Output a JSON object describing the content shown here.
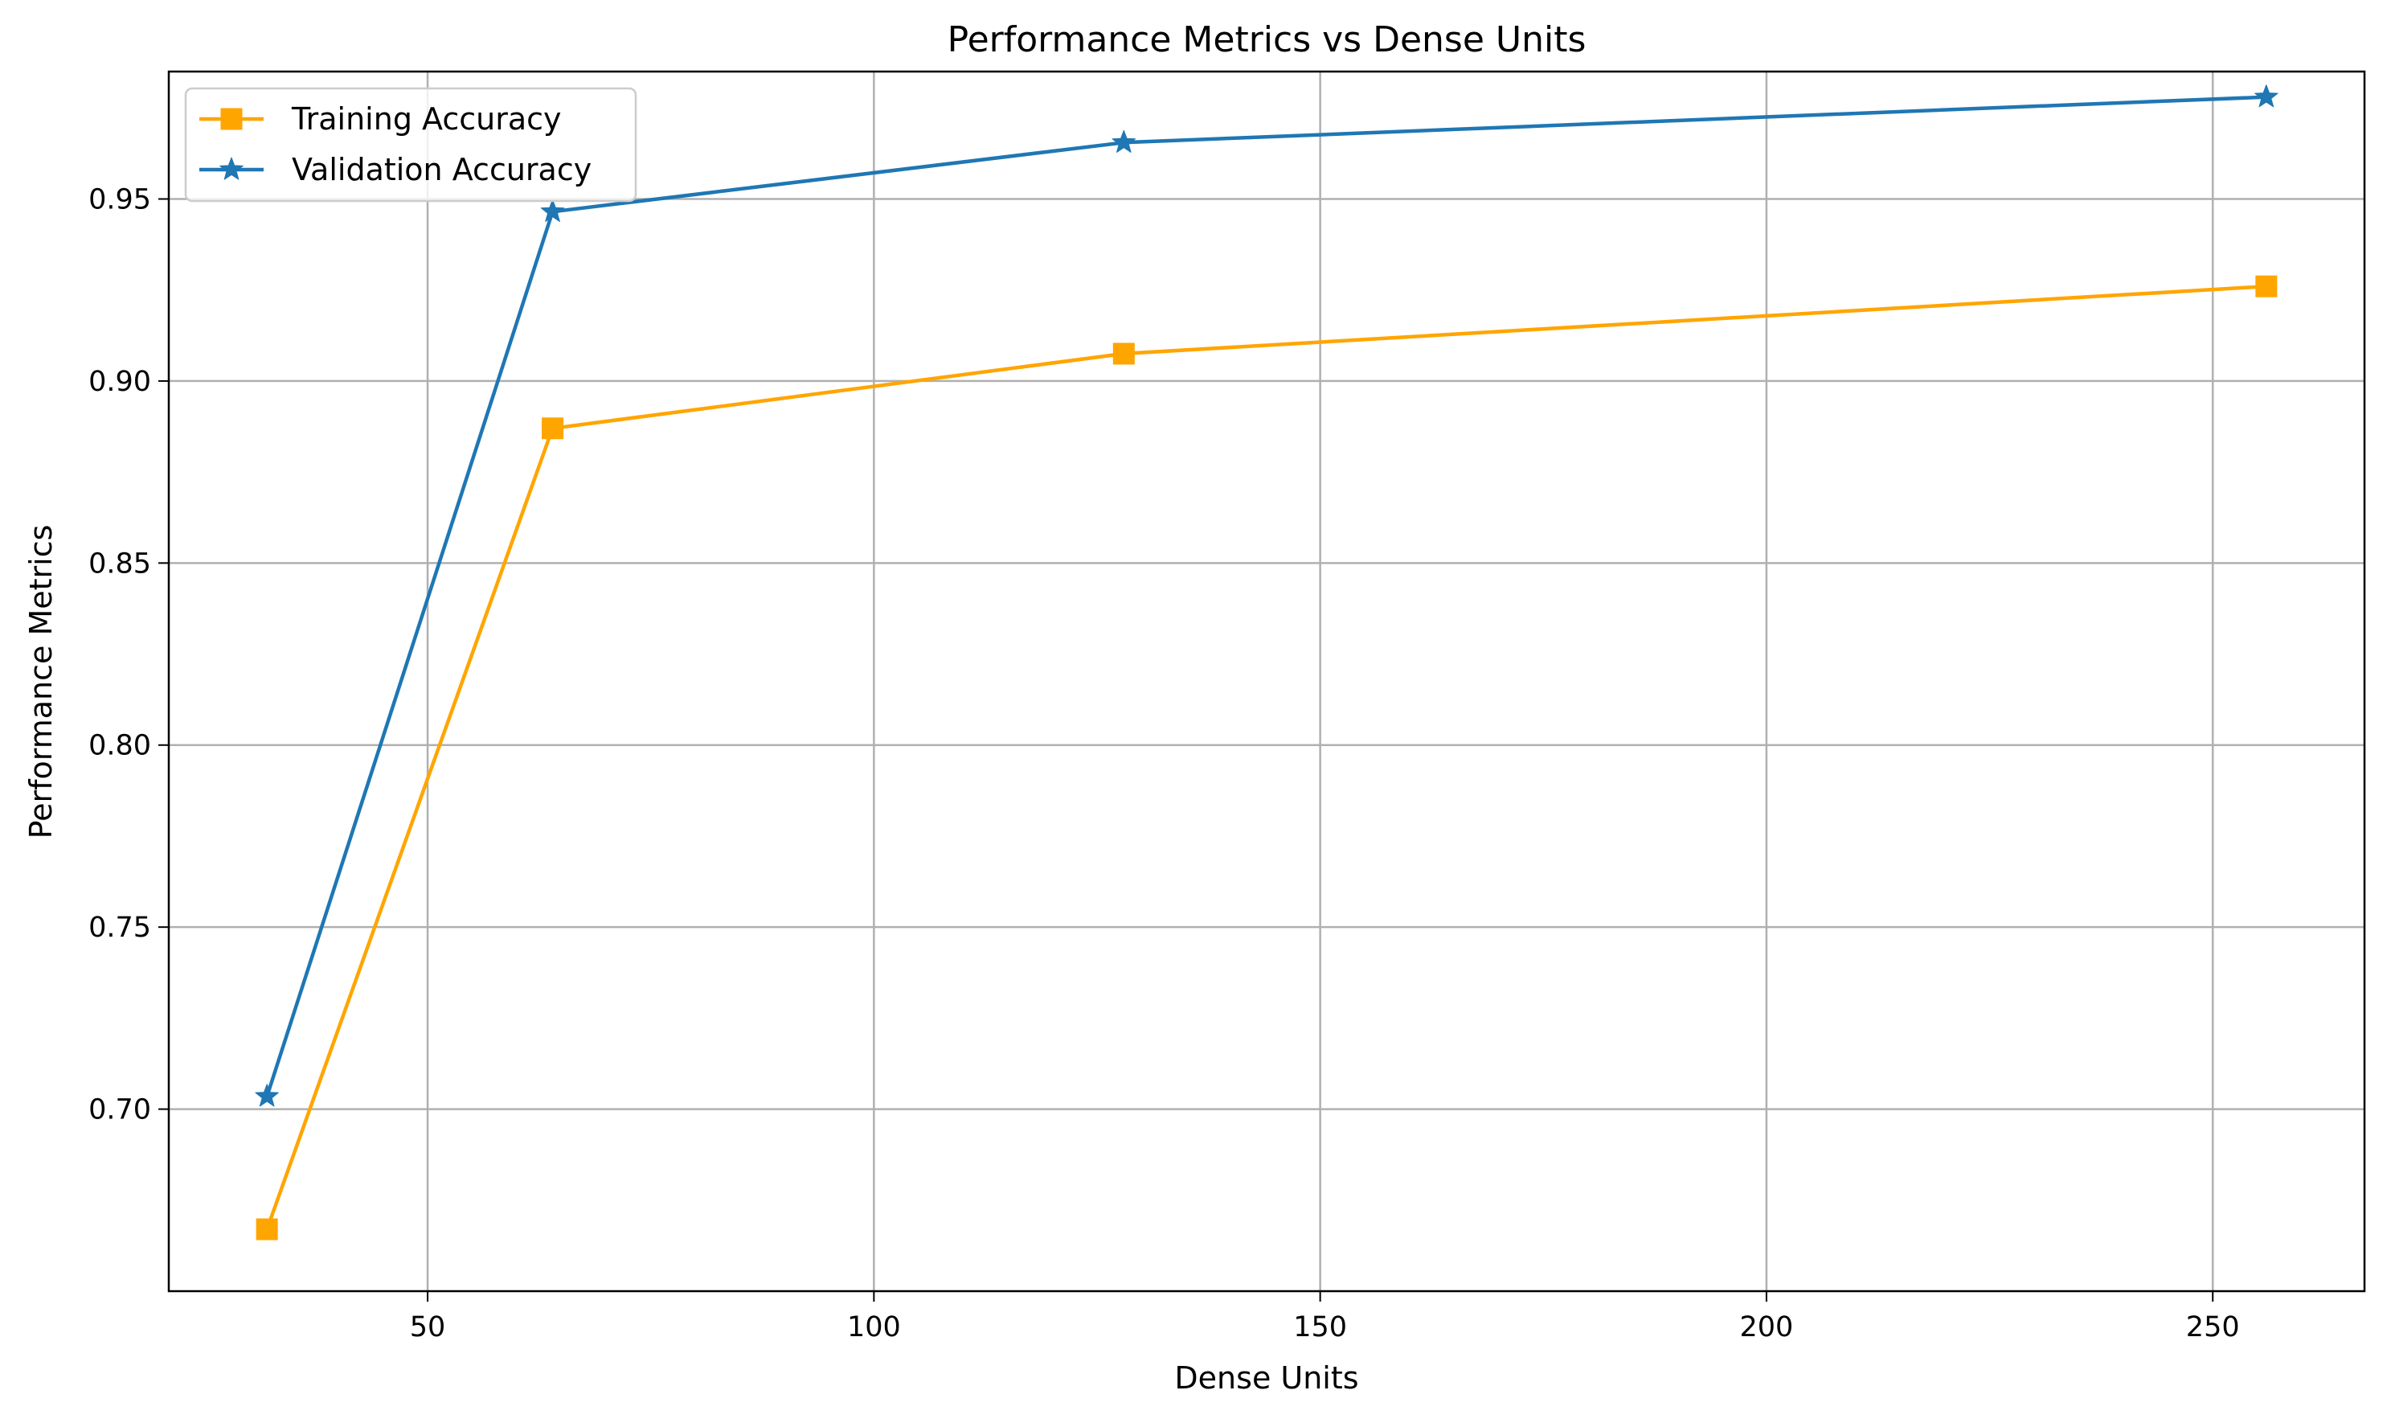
{
  "chart_data": {
    "type": "line",
    "title": "Performance Metrics vs Dense Units",
    "xlabel": "Dense Units",
    "ylabel": "Performance Metrics",
    "xlim": [
      21,
      267
    ],
    "ylim": [
      0.65,
      0.985
    ],
    "xticks": [
      50,
      100,
      150,
      200,
      250
    ],
    "yticks": [
      0.7,
      0.75,
      0.8,
      0.85,
      0.9,
      0.95
    ],
    "xtick_labels": [
      "50",
      "100",
      "150",
      "200",
      "250"
    ],
    "ytick_labels": [
      "0.70",
      "0.75",
      "0.80",
      "0.85",
      "0.90",
      "0.95"
    ],
    "grid": true,
    "legend_position": "top-left",
    "x": [
      32,
      64,
      128,
      256
    ],
    "series": [
      {
        "name": "Training Accuracy",
        "values": [
          0.667,
          0.887,
          0.9075,
          0.926
        ],
        "color": "#ffa500",
        "marker": "square"
      },
      {
        "name": "Validation Accuracy",
        "values": [
          0.7035,
          0.9465,
          0.9655,
          0.978
        ],
        "color": "#1f77b4",
        "marker": "star"
      }
    ]
  }
}
